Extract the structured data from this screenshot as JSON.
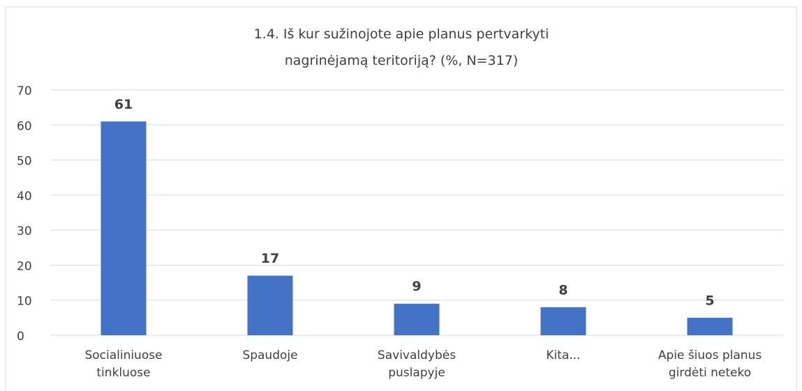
{
  "chart_data": {
    "type": "bar",
    "title": "1.4. Iš kur sužinojote apie planus pertvarkyti nagrinėjamą teritoriją? (%, N=317)",
    "categories": [
      "Socialiniuose tinkluose",
      "Spaudoje",
      "Savivaldybės puslapyje",
      "Kita...",
      "Apie šiuos planus girdėti neteko"
    ],
    "values": [
      61,
      17,
      9,
      8,
      5
    ],
    "color": "#4472c4",
    "ylim": [
      0,
      70
    ],
    "yticks": [
      0,
      10,
      20,
      30,
      40,
      50,
      60,
      70
    ],
    "grid": true
  }
}
